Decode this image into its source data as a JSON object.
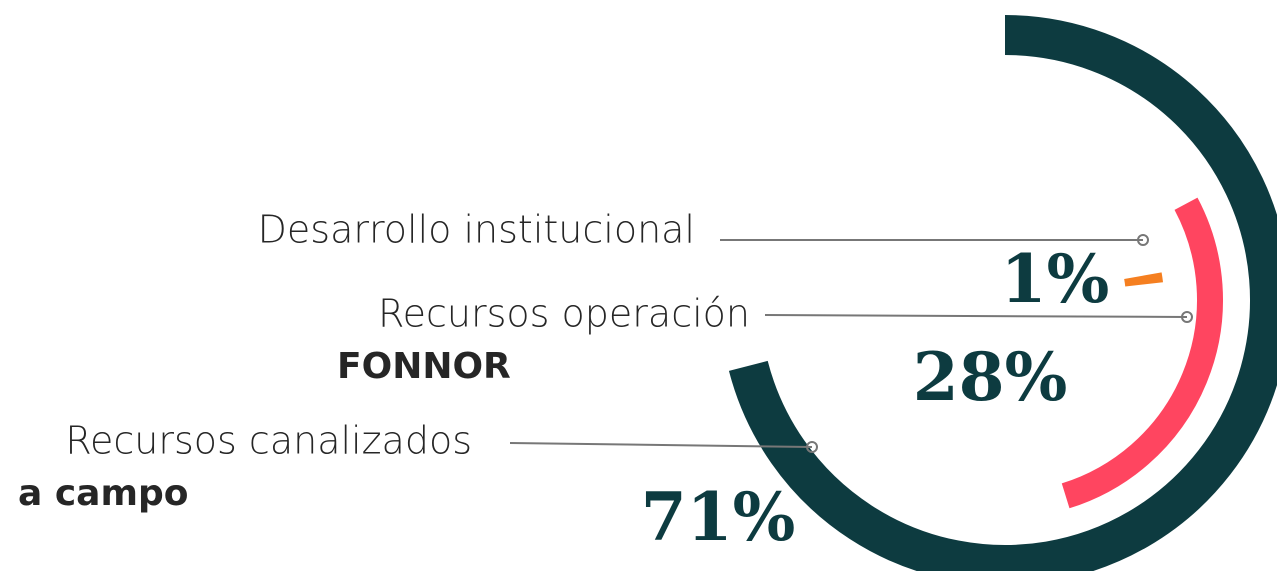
{
  "chart_data": {
    "type": "radial_bar",
    "categories": [
      [
        "Desarrollo institucional"
      ],
      [
        "Recursos operación",
        "FONNOR"
      ],
      [
        "Recursos canalizados",
        "a campo"
      ]
    ],
    "values": [
      1,
      28,
      71
    ],
    "value_labels": [
      "1%",
      "28%",
      "71%"
    ],
    "colors": [
      "#f57f20",
      "#ff4560",
      "#0d3b40"
    ]
  }
}
